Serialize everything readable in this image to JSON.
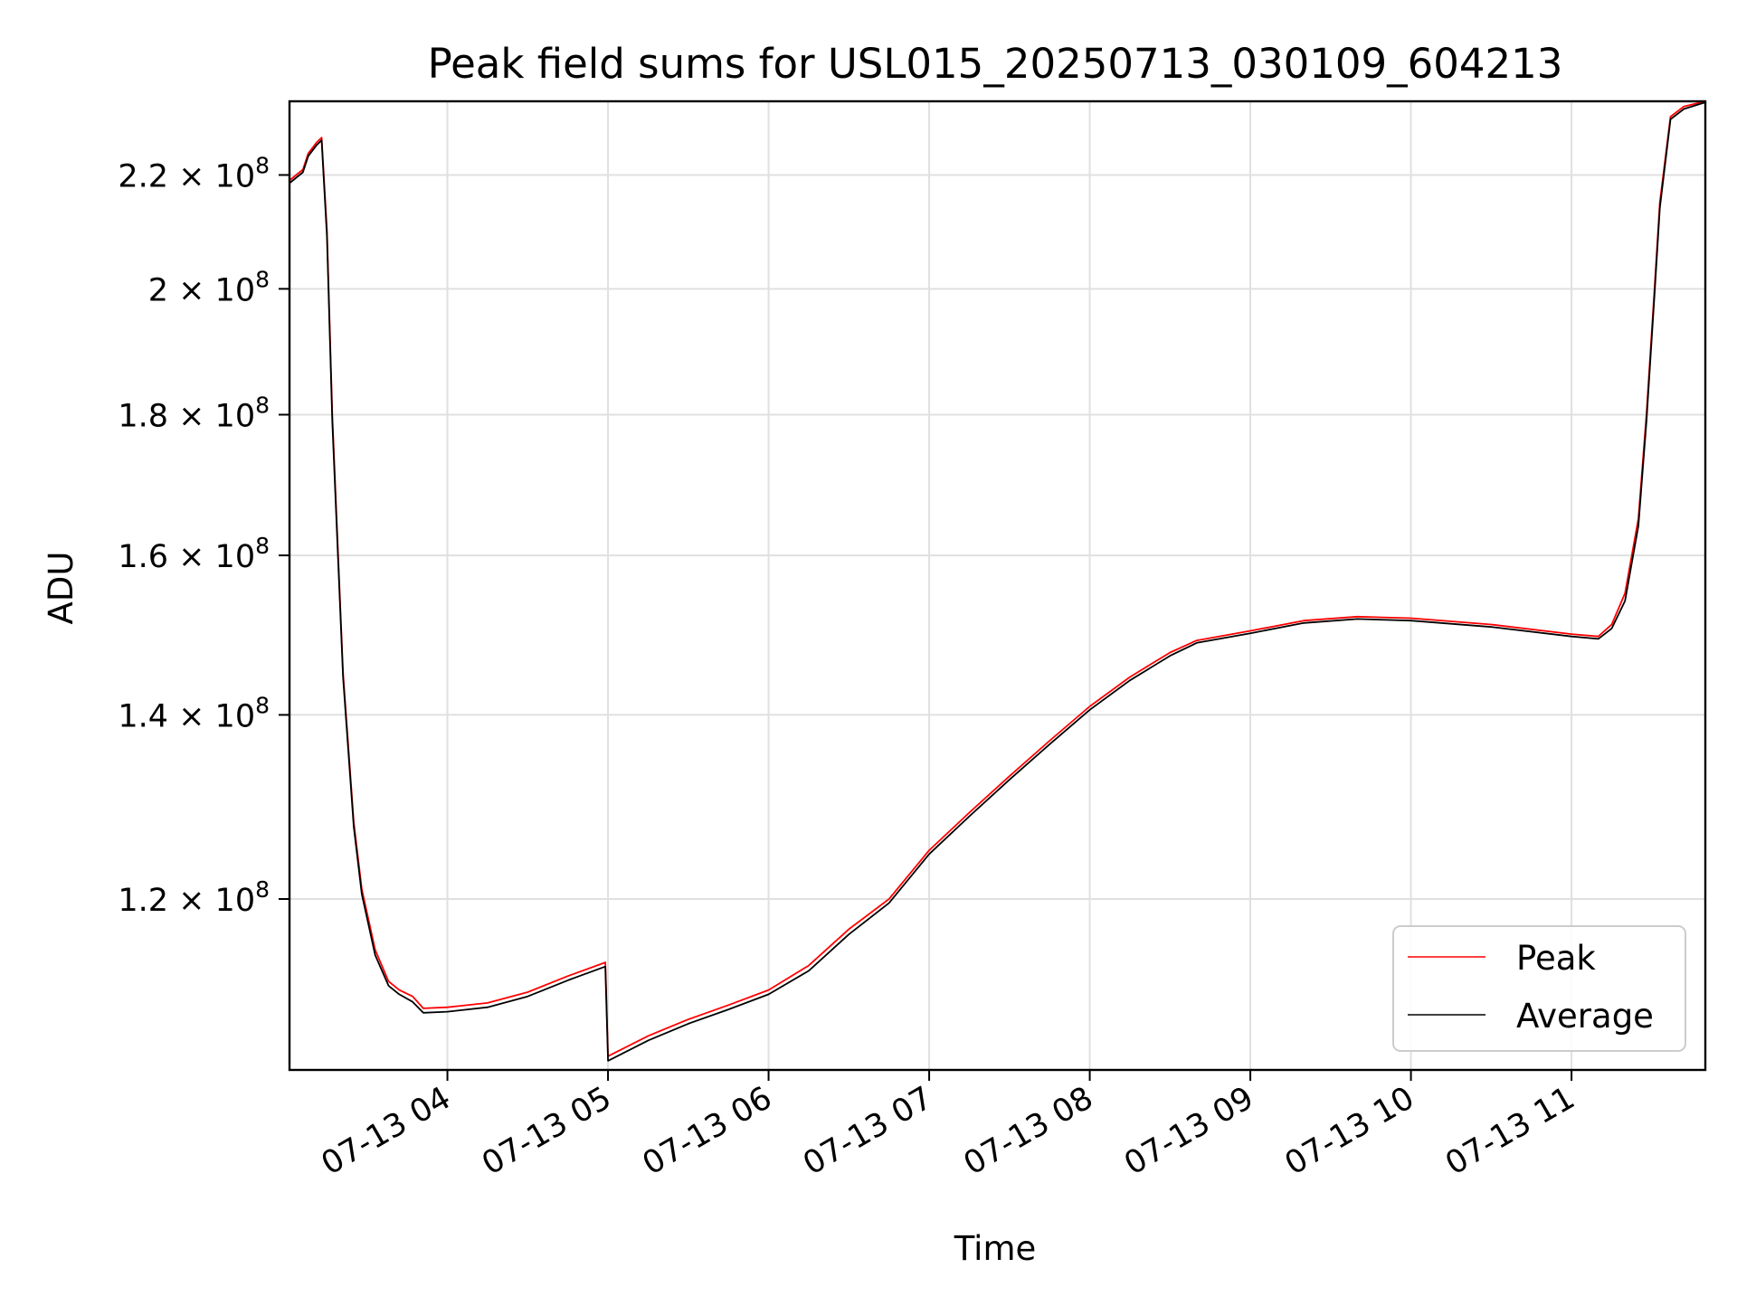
{
  "chart_data": {
    "type": "line",
    "title": "Peak field sums for USL015_20250713_030109_604213",
    "xlabel": "Time",
    "ylabel": "ADU",
    "y_scale": "log",
    "ylim": [
      104000000,
      234000000
    ],
    "xlim": [
      "2025-07-13 03:01",
      "2025-07-13 11:50"
    ],
    "grid": true,
    "legend_position": "lower-right",
    "x_ticks": [
      {
        "value": "2025-07-13 04:00",
        "label": "07-13 04"
      },
      {
        "value": "2025-07-13 05:00",
        "label": "07-13 05"
      },
      {
        "value": "2025-07-13 06:00",
        "label": "07-13 06"
      },
      {
        "value": "2025-07-13 07:00",
        "label": "07-13 07"
      },
      {
        "value": "2025-07-13 08:00",
        "label": "07-13 08"
      },
      {
        "value": "2025-07-13 09:00",
        "label": "07-13 09"
      },
      {
        "value": "2025-07-13 10:00",
        "label": "07-13 10"
      },
      {
        "value": "2025-07-13 11:00",
        "label": "07-13 11"
      }
    ],
    "y_ticks": [
      {
        "value": 120000000,
        "mantissa": "1.2",
        "exp": "8"
      },
      {
        "value": 140000000,
        "mantissa": "1.4",
        "exp": "8"
      },
      {
        "value": 160000000,
        "mantissa": "1.6",
        "exp": "8"
      },
      {
        "value": 180000000,
        "mantissa": "1.8",
        "exp": "8"
      },
      {
        "value": 200000000,
        "mantissa": "2",
        "exp": "8"
      },
      {
        "value": 220000000,
        "mantissa": "2.2",
        "exp": "8"
      }
    ],
    "series": [
      {
        "name": "Peak",
        "color": "#ff0000",
        "x": [
          "2025-07-13 03:01",
          "2025-07-13 03:06",
          "2025-07-13 03:08",
          "2025-07-13 03:11",
          "2025-07-13 03:13",
          "2025-07-13 03:15",
          "2025-07-13 03:17",
          "2025-07-13 03:21",
          "2025-07-13 03:25",
          "2025-07-13 03:28",
          "2025-07-13 03:33",
          "2025-07-13 03:38",
          "2025-07-13 03:42",
          "2025-07-13 03:47",
          "2025-07-13 03:51",
          "2025-07-13 04:00",
          "2025-07-13 04:15",
          "2025-07-13 04:30",
          "2025-07-13 04:45",
          "2025-07-13 04:59",
          "2025-07-13 05:00",
          "2025-07-13 05:15",
          "2025-07-13 05:30",
          "2025-07-13 05:45",
          "2025-07-13 06:00",
          "2025-07-13 06:15",
          "2025-07-13 06:30",
          "2025-07-13 06:45",
          "2025-07-13 07:00",
          "2025-07-13 07:15",
          "2025-07-13 07:30",
          "2025-07-13 07:45",
          "2025-07-13 08:00",
          "2025-07-13 08:15",
          "2025-07-13 08:30",
          "2025-07-13 08:40",
          "2025-07-13 09:00",
          "2025-07-13 09:20",
          "2025-07-13 09:40",
          "2025-07-13 10:00",
          "2025-07-13 10:30",
          "2025-07-13 11:00",
          "2025-07-13 11:10",
          "2025-07-13 11:15",
          "2025-07-13 11:20",
          "2025-07-13 11:25",
          "2025-07-13 11:28",
          "2025-07-13 11:31",
          "2025-07-13 11:33",
          "2025-07-13 11:37",
          "2025-07-13 11:42",
          "2025-07-13 11:50"
        ],
        "values": [
          219000000,
          221000000,
          224000000,
          226000000,
          227000000,
          210000000,
          180000000,
          145000000,
          128000000,
          121000000,
          115000000,
          112000000,
          111200000,
          110600000,
          109500000,
          109600000,
          110000000,
          111000000,
          112500000,
          113800000,
          105200000,
          107000000,
          108500000,
          109800000,
          111200000,
          113500000,
          117000000,
          120000000,
          125000000,
          129000000,
          133000000,
          137000000,
          141000000,
          144500000,
          147500000,
          149000000,
          150200000,
          151500000,
          152000000,
          151800000,
          151000000,
          149800000,
          149500000,
          151000000,
          155000000,
          165000000,
          180000000,
          200000000,
          215000000,
          231000000,
          233000000,
          234000000
        ]
      },
      {
        "name": "Average",
        "color": "#000000",
        "x": [
          "2025-07-13 03:01",
          "2025-07-13 03:06",
          "2025-07-13 03:08",
          "2025-07-13 03:11",
          "2025-07-13 03:13",
          "2025-07-13 03:15",
          "2025-07-13 03:17",
          "2025-07-13 03:21",
          "2025-07-13 03:25",
          "2025-07-13 03:28",
          "2025-07-13 03:33",
          "2025-07-13 03:38",
          "2025-07-13 03:42",
          "2025-07-13 03:47",
          "2025-07-13 03:51",
          "2025-07-13 04:00",
          "2025-07-13 04:15",
          "2025-07-13 04:30",
          "2025-07-13 04:45",
          "2025-07-13 04:59",
          "2025-07-13 05:00",
          "2025-07-13 05:15",
          "2025-07-13 05:30",
          "2025-07-13 05:45",
          "2025-07-13 06:00",
          "2025-07-13 06:15",
          "2025-07-13 06:30",
          "2025-07-13 06:45",
          "2025-07-13 07:00",
          "2025-07-13 07:15",
          "2025-07-13 07:30",
          "2025-07-13 07:45",
          "2025-07-13 08:00",
          "2025-07-13 08:15",
          "2025-07-13 08:30",
          "2025-07-13 08:40",
          "2025-07-13 09:00",
          "2025-07-13 09:20",
          "2025-07-13 09:40",
          "2025-07-13 10:00",
          "2025-07-13 10:30",
          "2025-07-13 11:00",
          "2025-07-13 11:10",
          "2025-07-13 11:15",
          "2025-07-13 11:20",
          "2025-07-13 11:25",
          "2025-07-13 11:28",
          "2025-07-13 11:31",
          "2025-07-13 11:33",
          "2025-07-13 11:37",
          "2025-07-13 11:42",
          "2025-07-13 11:50"
        ],
        "values": [
          218500000,
          220500000,
          223500000,
          225500000,
          226500000,
          209000000,
          179000000,
          144500000,
          127500000,
          120500000,
          114500000,
          111600000,
          110800000,
          110100000,
          109100000,
          109200000,
          109600000,
          110600000,
          112100000,
          113400000,
          104800000,
          106600000,
          108100000,
          109400000,
          110800000,
          113000000,
          116500000,
          119600000,
          124600000,
          128600000,
          132600000,
          136600000,
          140600000,
          144100000,
          147100000,
          148700000,
          149900000,
          151200000,
          151700000,
          151500000,
          150700000,
          149500000,
          149200000,
          150500000,
          154000000,
          164000000,
          179000000,
          199000000,
          214000000,
          230500000,
          232500000,
          233800000
        ]
      }
    ]
  }
}
